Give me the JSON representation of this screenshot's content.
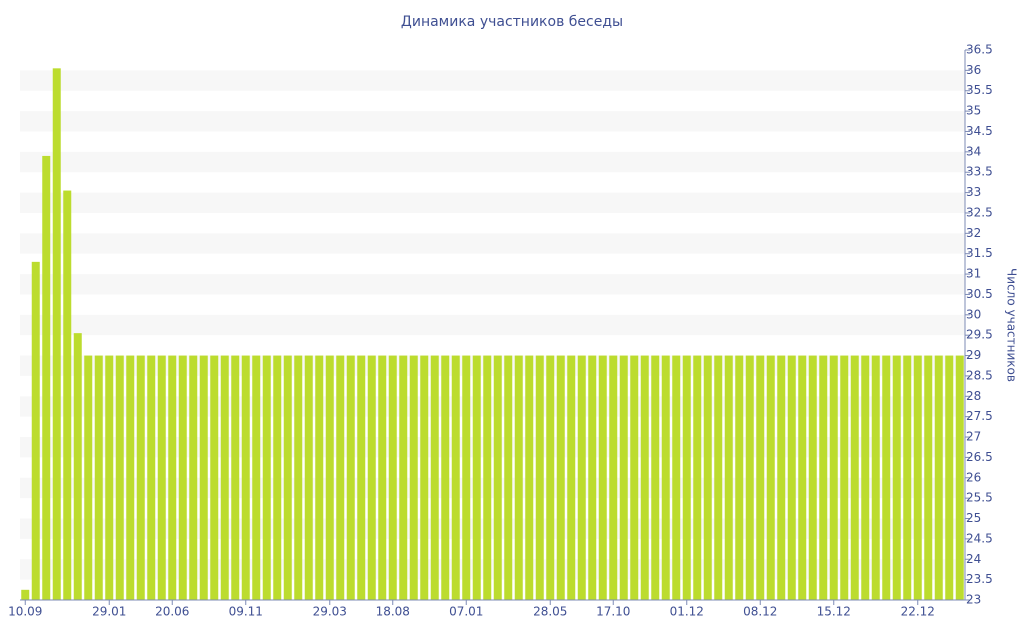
{
  "chart_data": {
    "type": "bar",
    "title": "Динамика участников беседы",
    "y_axis_title": "Число участников",
    "categories": [
      "10.09",
      null,
      null,
      null,
      null,
      null,
      null,
      null,
      "29.01",
      null,
      null,
      null,
      null,
      null,
      "20.06",
      null,
      null,
      null,
      null,
      null,
      null,
      "09.11",
      null,
      null,
      null,
      null,
      null,
      null,
      null,
      "29.03",
      null,
      null,
      null,
      null,
      null,
      "18.08",
      null,
      null,
      null,
      null,
      null,
      null,
      "07.01",
      null,
      null,
      null,
      null,
      null,
      null,
      null,
      "28.05",
      null,
      null,
      null,
      null,
      null,
      "17.10",
      null,
      null,
      null,
      null,
      null,
      null,
      "01.12",
      null,
      null,
      null,
      null,
      null,
      null,
      "08.12",
      null,
      null,
      null,
      null,
      null,
      null,
      "15.12",
      null,
      null,
      null,
      null,
      null,
      null,
      null,
      "22.12",
      null,
      null,
      null,
      null
    ],
    "values": [
      23.25,
      31.3,
      33.9,
      36.05,
      33.05,
      29.55,
      29,
      29,
      29,
      29,
      29,
      29,
      29,
      29,
      29,
      29,
      29,
      29,
      29,
      29,
      29,
      29,
      29,
      29,
      29,
      29,
      29,
      29,
      29,
      29,
      29,
      29,
      29,
      29,
      29,
      29,
      29,
      29,
      29,
      29,
      29,
      29,
      29,
      29,
      29,
      29,
      29,
      29,
      29,
      29,
      29,
      29,
      29,
      29,
      29,
      29,
      29,
      29,
      29,
      29,
      29,
      29,
      29,
      29,
      29,
      29,
      29,
      29,
      29,
      29,
      29,
      29,
      29,
      29,
      29,
      29,
      29,
      29,
      29,
      29,
      29,
      29,
      29,
      29,
      29,
      29,
      29,
      29,
      29,
      29
    ],
    "color": "#bcdc2e",
    "ylim": [
      23,
      36.5
    ],
    "yticks": [
      23,
      23.5,
      24,
      24.5,
      25,
      25.5,
      26,
      26.5,
      27,
      27.5,
      28,
      28.5,
      29,
      29.5,
      30,
      30.5,
      31,
      31.5,
      32,
      32.5,
      33,
      33.5,
      34,
      34.5,
      35,
      35.5,
      36,
      36.5
    ],
    "y_axis_side": "right",
    "grid_bands": true
  }
}
